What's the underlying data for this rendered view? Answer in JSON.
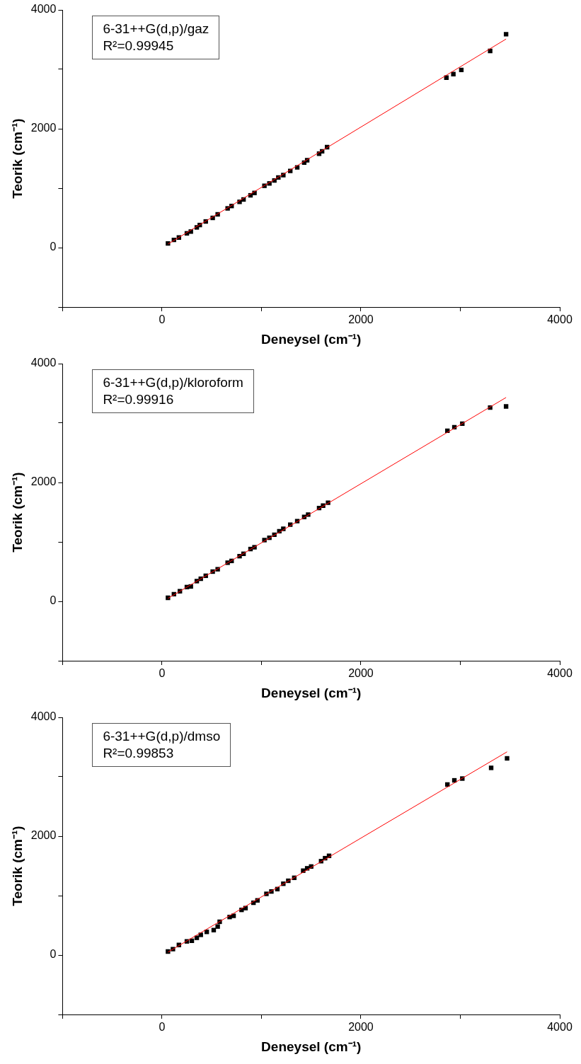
{
  "chart_data": [
    {
      "type": "scatter",
      "xlabel": "Deneysel (cm⁻¹)",
      "ylabel": "Teorik (cm⁻¹)",
      "annotations": [
        "6-31++G(d,p)/gaz",
        "R²=0.99945"
      ],
      "xlim": [
        -1000,
        4000
      ],
      "ylim": [
        -1000,
        4000
      ],
      "xticks": [
        {
          "value": -1000,
          "label": null
        },
        0,
        {
          "value": 1000,
          "label": null
        },
        2000,
        {
          "value": 3000,
          "label": null
        },
        4000
      ],
      "yticks": [
        {
          "value": -1000,
          "label": null
        },
        0,
        {
          "value": 1000,
          "label": null
        },
        2000,
        {
          "value": 3000,
          "label": null
        },
        4000
      ],
      "grid": false,
      "legend": false,
      "series": [
        {
          "type": "scatter",
          "marker": "square",
          "color": "#000000",
          "x": [
            60,
            120,
            170,
            250,
            290,
            350,
            380,
            440,
            510,
            560,
            660,
            700,
            780,
            820,
            890,
            930,
            1030,
            1080,
            1130,
            1170,
            1220,
            1290,
            1360,
            1430,
            1460,
            1580,
            1610,
            1660,
            2860,
            2930,
            3010,
            3300,
            3460
          ],
          "values": [
            70,
            130,
            170,
            240,
            270,
            340,
            380,
            440,
            500,
            560,
            660,
            700,
            770,
            810,
            880,
            920,
            1040,
            1080,
            1130,
            1180,
            1220,
            1290,
            1350,
            1430,
            1470,
            1580,
            1620,
            1690,
            2860,
            2920,
            2990,
            3310,
            3590
          ]
        },
        {
          "type": "line",
          "marker": "none",
          "color": "#ff0000",
          "x": [
            60,
            3460
          ],
          "values": [
            60,
            3510
          ]
        }
      ]
    },
    {
      "type": "scatter",
      "xlabel": "Deneysel (cm⁻¹)",
      "ylabel": "Teorik (cm⁻¹)",
      "annotations": [
        "6-31++G(d,p)/kloroform",
        "R²=0.99916"
      ],
      "xlim": [
        -1000,
        4000
      ],
      "ylim": [
        -1000,
        4000
      ],
      "xticks": [
        {
          "value": -1000,
          "label": null
        },
        0,
        {
          "value": 1000,
          "label": null
        },
        2000,
        {
          "value": 3000,
          "label": null
        },
        4000
      ],
      "yticks": [
        {
          "value": -1000,
          "label": null
        },
        0,
        {
          "value": 1000,
          "label": null
        },
        2000,
        {
          "value": 3000,
          "label": null
        },
        4000
      ],
      "grid": false,
      "legend": false,
      "series": [
        {
          "type": "scatter",
          "marker": "square",
          "color": "#000000",
          "x": [
            60,
            120,
            180,
            250,
            290,
            350,
            390,
            440,
            510,
            560,
            660,
            700,
            780,
            820,
            890,
            930,
            1030,
            1080,
            1130,
            1180,
            1220,
            1290,
            1360,
            1430,
            1470,
            1580,
            1620,
            1670,
            2870,
            2940,
            3020,
            3300,
            3460
          ],
          "values": [
            60,
            120,
            170,
            240,
            250,
            340,
            380,
            430,
            500,
            540,
            650,
            680,
            760,
            800,
            880,
            910,
            1030,
            1070,
            1120,
            1180,
            1220,
            1290,
            1350,
            1420,
            1460,
            1570,
            1610,
            1660,
            2870,
            2930,
            2990,
            3260,
            3280
          ]
        },
        {
          "type": "line",
          "marker": "none",
          "color": "#ff0000",
          "x": [
            60,
            3460
          ],
          "values": [
            50,
            3430
          ]
        }
      ]
    },
    {
      "type": "scatter",
      "xlabel": "Deneysel (cm⁻¹)",
      "ylabel": "Teorik (cm⁻¹)",
      "annotations": [
        "6-31++G(d,p)/dmso",
        "R²=0.99853"
      ],
      "xlim": [
        -1000,
        4000
      ],
      "ylim": [
        -1000,
        4000
      ],
      "xticks": [
        {
          "value": -1000,
          "label": null
        },
        0,
        {
          "value": 1000,
          "label": null
        },
        2000,
        {
          "value": 3000,
          "label": null
        },
        4000
      ],
      "yticks": [
        {
          "value": -1000,
          "label": null
        },
        0,
        {
          "value": 1000,
          "label": null
        },
        2000,
        {
          "value": 3000,
          "label": null
        },
        4000
      ],
      "grid": false,
      "legend": false,
      "series": [
        {
          "type": "scatter",
          "marker": "square",
          "color": "#000000",
          "x": [
            60,
            110,
            170,
            250,
            300,
            350,
            390,
            450,
            520,
            560,
            580,
            680,
            720,
            800,
            840,
            920,
            960,
            1050,
            1100,
            1160,
            1220,
            1270,
            1330,
            1420,
            1460,
            1500,
            1600,
            1640,
            1680,
            2870,
            2940,
            3020,
            3310,
            3470
          ],
          "values": [
            60,
            100,
            170,
            230,
            240,
            290,
            340,
            390,
            420,
            480,
            560,
            640,
            660,
            760,
            790,
            880,
            920,
            1030,
            1070,
            1110,
            1200,
            1250,
            1300,
            1420,
            1460,
            1490,
            1580,
            1630,
            1670,
            2870,
            2940,
            2970,
            3150,
            3310
          ]
        },
        {
          "type": "line",
          "marker": "none",
          "color": "#ff0000",
          "x": [
            60,
            3470
          ],
          "values": [
            50,
            3420
          ]
        }
      ]
    }
  ]
}
